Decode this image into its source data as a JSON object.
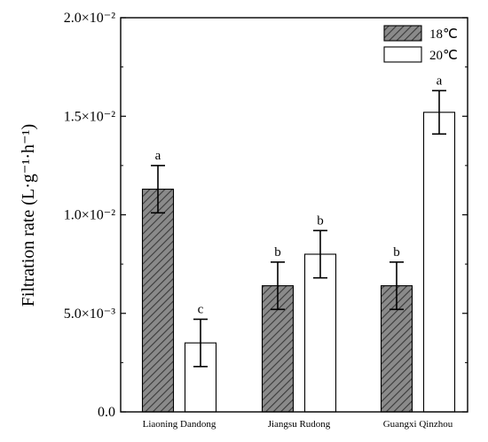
{
  "chart_data": {
    "type": "bar",
    "title": "",
    "xlabel": "",
    "ylabel": "Filtration rate (L·g⁻¹·h⁻¹)",
    "ylim": [
      0,
      0.02
    ],
    "yticks": [
      {
        "value": 0,
        "label": "0.0"
      },
      {
        "value": 0.005,
        "label": "5.0×10⁻³"
      },
      {
        "value": 0.01,
        "label": "1.0×10⁻²"
      },
      {
        "value": 0.015,
        "label": "1.5×10⁻²"
      },
      {
        "value": 0.02,
        "label": "2.0×10⁻²"
      }
    ],
    "categories": [
      "Liaoning Dandong",
      "Jiangsu Rudong",
      "Guangxi Qinzhou"
    ],
    "series": [
      {
        "name": "18℃",
        "style": "hatched",
        "fill": "#6b6b6b",
        "values": [
          0.0113,
          0.0064,
          0.0064
        ],
        "errors": [
          0.0012,
          0.0012,
          0.0012
        ],
        "significance": [
          "a",
          "b",
          "b"
        ]
      },
      {
        "name": "20℃",
        "style": "solid",
        "fill": "#ffffff",
        "values": [
          0.0035,
          0.008,
          0.0152
        ],
        "errors": [
          0.0012,
          0.0012,
          0.0011
        ],
        "significance": [
          "c",
          "b",
          "a"
        ]
      }
    ],
    "grid": false,
    "legend_position": "top-right"
  }
}
